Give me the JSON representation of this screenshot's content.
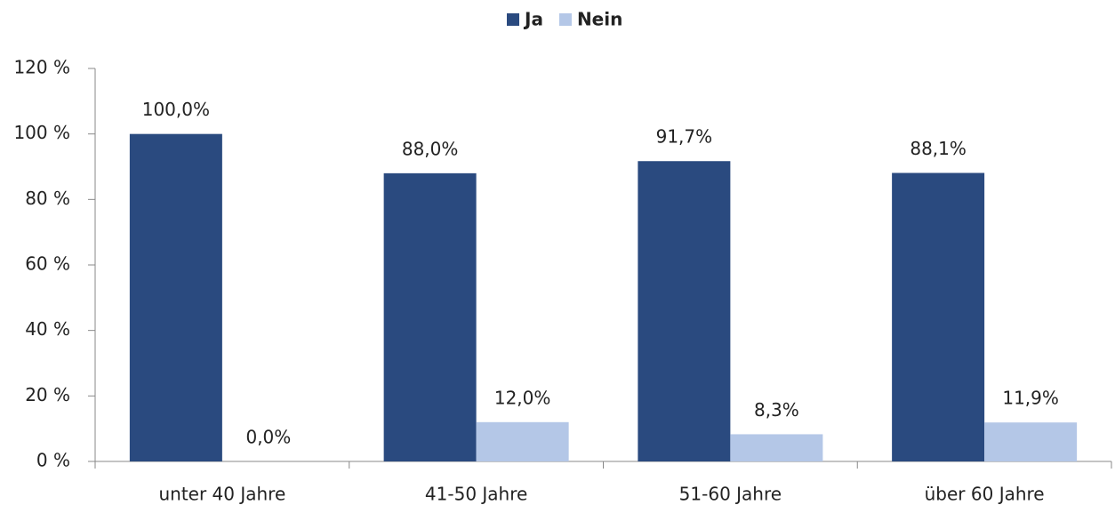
{
  "chart_data": {
    "type": "bar",
    "categories": [
      "unter 40 Jahre",
      "41-50 Jahre",
      "51-60 Jahre",
      "über 60 Jahre"
    ],
    "series": [
      {
        "name": "Ja",
        "color": "#2a4a7f",
        "values": [
          100.0,
          88.0,
          91.7,
          88.1
        ],
        "value_labels": [
          "100,0%",
          "88,0%",
          "91,7%",
          "88,1%"
        ]
      },
      {
        "name": "Nein",
        "color": "#b4c7e7",
        "values": [
          0.0,
          12.0,
          8.3,
          11.9
        ],
        "value_labels": [
          "0,0%",
          "12,0%",
          "8,3%",
          "11,9%"
        ]
      }
    ],
    "ylim": [
      0,
      120
    ],
    "yticks": [
      {
        "value": 0,
        "label": "0 %"
      },
      {
        "value": 20,
        "label": "20 %"
      },
      {
        "value": 40,
        "label": "40 %"
      },
      {
        "value": 60,
        "label": "60 %"
      },
      {
        "value": 80,
        "label": "80 %"
      },
      {
        "value": 100,
        "label": "100 %"
      },
      {
        "value": 120,
        "label": "120 %"
      }
    ],
    "legend": "top",
    "grid": false
  }
}
